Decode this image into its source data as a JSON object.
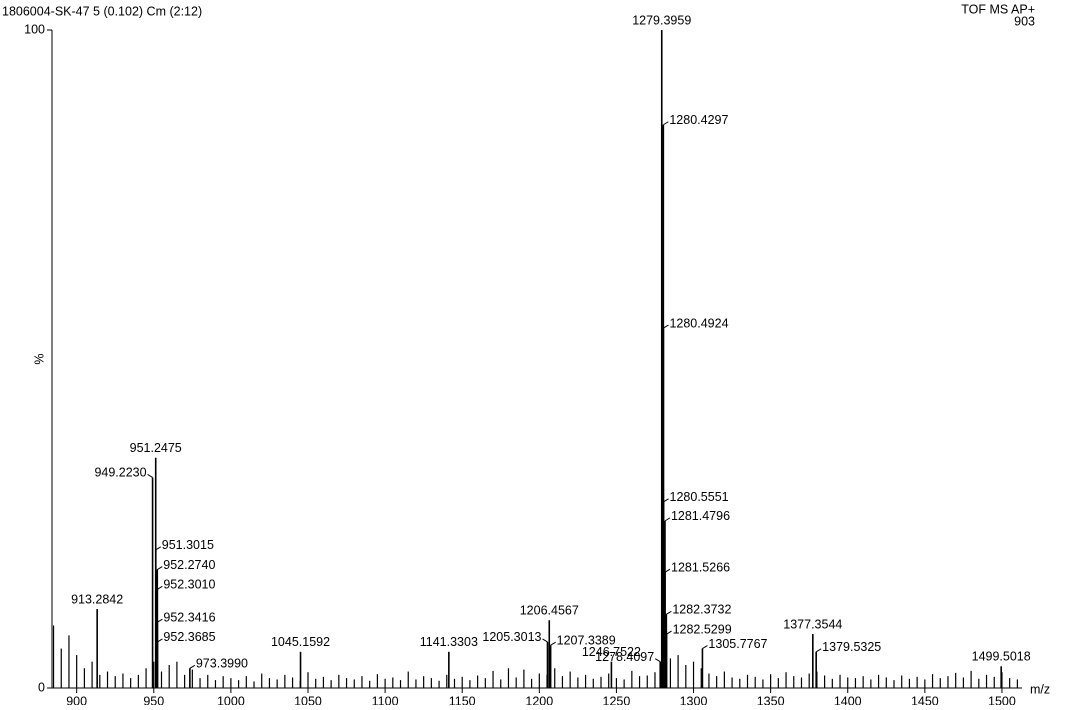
{
  "chart_data": {
    "type": "spectrum",
    "title": "1806004-SK-47 5 (0.102) Cm (2:12)",
    "instrument": "TOF MS AP+",
    "max_intensity": "903",
    "x_label": "m/z",
    "y_label": "%",
    "xlim": [
      884,
      1513
    ],
    "ylim": [
      0,
      100
    ],
    "xticks": [
      900,
      950,
      1000,
      1050,
      1100,
      1150,
      1200,
      1250,
      1300,
      1350,
      1400,
      1450,
      1500
    ],
    "yticks": [
      0,
      100
    ],
    "color": "#000000",
    "peaks": {
      "x": [
        913.2842,
        949.223,
        951.2475,
        951.3015,
        952.274,
        952.301,
        952.3416,
        952.3685,
        973.399,
        1045.1592,
        1141.3303,
        1205.3013,
        1206.4567,
        1207.3389,
        1246.7522,
        1278.4097,
        1279.3959,
        1280.4297,
        1280.4924,
        1280.5551,
        1281.4796,
        1281.5266,
        1282.3732,
        1282.5299,
        1305.7767,
        1377.3544,
        1379.5325,
        1499.5018
      ],
      "labels": [
        "913.2842",
        "949.2230",
        "951.2475",
        "951.3015",
        "952.2740",
        "952.3010",
        "952.3416",
        "952.3685",
        "973.3990",
        "1045.1592",
        "1141.3303",
        "1205.3013",
        "1206.4567",
        "1207.3389",
        "1246.7522",
        "1278.4097",
        "1279.3959",
        "1280.4297",
        "1280.4924",
        "1280.5551",
        "1281.4796",
        "1281.5266",
        "1282.3732",
        "1282.5299",
        "1305.7767",
        "1377.3544",
        "1379.5325",
        "1499.5018"
      ],
      "values": [
        12,
        32,
        35,
        21,
        18,
        15,
        10,
        7,
        3,
        5.5,
        5.5,
        7,
        10.3,
        6.5,
        4,
        4,
        100,
        85.6,
        54.7,
        28.3,
        25.4,
        17.6,
        11.2,
        8.2,
        6,
        8.2,
        5.5,
        3.3
      ]
    },
    "background": {
      "x": [
        885,
        890,
        895,
        900,
        905,
        910,
        915,
        920,
        925,
        930,
        935,
        940,
        945,
        950,
        955,
        960,
        965,
        970,
        975,
        980,
        985,
        990,
        995,
        1000,
        1005,
        1010,
        1015,
        1020,
        1025,
        1030,
        1035,
        1040,
        1045,
        1050,
        1055,
        1060,
        1065,
        1070,
        1075,
        1080,
        1085,
        1090,
        1095,
        1100,
        1105,
        1110,
        1115,
        1120,
        1125,
        1130,
        1135,
        1140,
        1145,
        1150,
        1155,
        1160,
        1165,
        1170,
        1175,
        1180,
        1185,
        1190,
        1195,
        1200,
        1205,
        1210,
        1215,
        1220,
        1225,
        1230,
        1235,
        1240,
        1245,
        1250,
        1255,
        1260,
        1265,
        1270,
        1275,
        1280,
        1285,
        1290,
        1295,
        1300,
        1305,
        1310,
        1315,
        1320,
        1325,
        1330,
        1335,
        1340,
        1345,
        1350,
        1355,
        1360,
        1365,
        1370,
        1375,
        1380,
        1385,
        1390,
        1395,
        1400,
        1405,
        1410,
        1415,
        1420,
        1425,
        1430,
        1435,
        1440,
        1445,
        1450,
        1455,
        1460,
        1465,
        1470,
        1475,
        1480,
        1485,
        1490,
        1495,
        1500,
        1505,
        1510
      ],
      "values": [
        9.5,
        6,
        8,
        5,
        3,
        4,
        2,
        2.5,
        1.8,
        2.2,
        1.5,
        2,
        3,
        4,
        2.5,
        3.5,
        4,
        2,
        2.8,
        1.5,
        2,
        1.2,
        1.8,
        1.5,
        1.2,
        1.8,
        1,
        2.2,
        1.5,
        1.3,
        2,
        1.6,
        1.1,
        2.4,
        1.4,
        1.7,
        1.2,
        2,
        1.5,
        1.3,
        1.8,
        1.1,
        2.1,
        1.4,
        1.6,
        1.2,
        2.5,
        1.3,
        1.8,
        1.5,
        1.1,
        2,
        1.4,
        1.7,
        1.2,
        1.9,
        1.5,
        2.6,
        1.3,
        3,
        1.6,
        2.8,
        1.4,
        2.2,
        2,
        3,
        1.8,
        2.5,
        1.6,
        2,
        1.4,
        1.7,
        2.2,
        1.5,
        1.3,
        2.6,
        1.8,
        1.9,
        2.4,
        3,
        4.5,
        5,
        3.5,
        4,
        3,
        2.2,
        1.8,
        2.5,
        1.6,
        1.4,
        2,
        1.7,
        1.3,
        2.1,
        1.5,
        2.4,
        1.8,
        1.6,
        2.2,
        2.5,
        1.9,
        1.4,
        2,
        1.6,
        1.5,
        1.8,
        1.3,
        2,
        1.6,
        1.2,
        1.9,
        1.4,
        1.7,
        1.3,
        2.1,
        1.5,
        1.8,
        2.3,
        1.6,
        2.6,
        1.4,
        2,
        1.7,
        2.4,
        1.5,
        1.3
      ]
    }
  }
}
